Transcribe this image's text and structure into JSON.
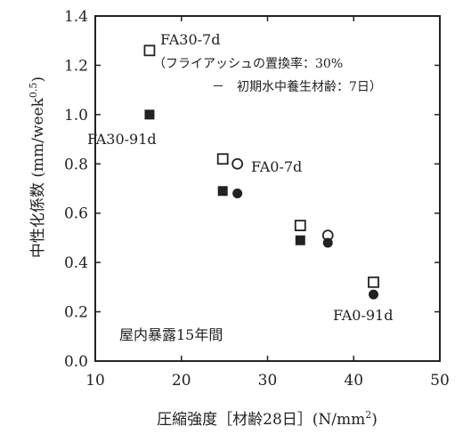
{
  "chart_data": {
    "type": "scatter",
    "xlabel": "圧縮強度［材齢28日］(N/mm",
    "xlabel_sup": "2",
    "xlabel_tail": ")",
    "ylabel": "中性化係数 (mm/week",
    "ylabel_sup": "0.5",
    "ylabel_tail": ")",
    "xlim": [
      10,
      50
    ],
    "ylim": [
      0.0,
      1.4
    ],
    "x_ticks": [
      "10",
      "20",
      "30",
      "40",
      "50"
    ],
    "y_ticks": [
      "0.0",
      "0.2",
      "0.4",
      "0.6",
      "0.8",
      "1.0",
      "1.2",
      "1.4"
    ],
    "series": [
      {
        "marker": "open-square",
        "points": [
          [
            16.3,
            1.26
          ],
          [
            24.8,
            0.82
          ],
          [
            33.8,
            0.55
          ],
          [
            42.3,
            0.32
          ]
        ]
      },
      {
        "marker": "filled-square",
        "points": [
          [
            16.3,
            1.0
          ],
          [
            24.8,
            0.69
          ],
          [
            33.8,
            0.49
          ]
        ]
      },
      {
        "marker": "open-circle",
        "points": [
          [
            26.5,
            0.8
          ],
          [
            37.0,
            0.51
          ]
        ]
      },
      {
        "marker": "filled-circle",
        "points": [
          [
            26.5,
            0.68
          ],
          [
            37.0,
            0.48
          ],
          [
            42.3,
            0.27
          ]
        ]
      }
    ],
    "annotations": {
      "fa30_7d": "FA30-7d",
      "note_line1": "（フライアッシュの置換率：30%",
      "note_line2": "－　初期水中養生材齢：7日）",
      "fa30_91d": "FA30-91d",
      "fa0_7d": "FA0-7d",
      "fa0_91d": "FA0-91d",
      "exposure": "屋内暴露15年間"
    },
    "colors": {
      "ink": "#222222"
    }
  }
}
